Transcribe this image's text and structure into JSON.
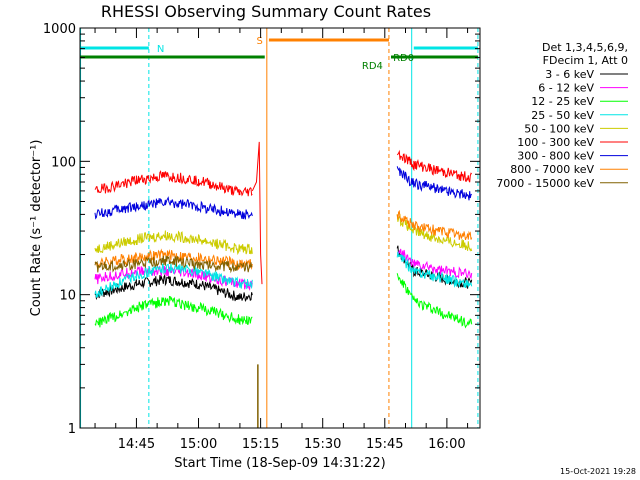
{
  "chart_data": {
    "type": "line",
    "title": "RHESSI Observing Summary Count Rates",
    "xlabel": "Start Time (18-Sep-09 14:31:22)",
    "ylabel": "Count Rate (s⁻¹ detector⁻¹)",
    "y_scale": "log",
    "ylim": [
      1,
      1000
    ],
    "xlim": [
      "14:31:22",
      "16:08:00"
    ],
    "x_ticks": [
      "14:45",
      "15:00",
      "15:15",
      "15:30",
      "15:45",
      "16:00"
    ],
    "y_ticks": [
      "1",
      "10",
      "100",
      "1000"
    ],
    "legend_position": "right",
    "legend_header": [
      "Det 1,3,4,5,6,9,",
      "FDecim 1, Att 0"
    ],
    "series": [
      {
        "name": "3 - 6 keV",
        "color": "#000000",
        "x": [
          "14:35",
          "14:45",
          "14:52",
          "15:00",
          "15:10",
          "15:13",
          "15:48",
          "15:52",
          "16:00",
          "16:06"
        ],
        "values": [
          10,
          12,
          13,
          12,
          9.5,
          10,
          22,
          15,
          13,
          12
        ]
      },
      {
        "name": "6 - 12 keV",
        "color": "#ff00ff",
        "x": [
          "14:35",
          "14:45",
          "14:52",
          "15:00",
          "15:10",
          "15:13",
          "15:48",
          "15:52",
          "16:00",
          "16:06"
        ],
        "values": [
          13,
          15,
          15,
          14,
          12,
          12,
          22,
          17,
          15,
          14
        ]
      },
      {
        "name": "12 - 25 keV",
        "color": "#00ff00",
        "x": [
          "14:35",
          "14:45",
          "14:52",
          "15:00",
          "15:10",
          "15:13",
          "15:48",
          "15:52",
          "16:00",
          "16:06"
        ],
        "values": [
          6,
          8,
          9,
          8,
          6.5,
          6.5,
          14,
          9,
          7,
          6
        ]
      },
      {
        "name": "25 - 50 keV",
        "color": "#00e5e5",
        "x": [
          "14:35",
          "14:45",
          "14:52",
          "15:00",
          "15:10",
          "15:13",
          "15:48",
          "15:52",
          "16:00",
          "16:06"
        ],
        "values": [
          10,
          14,
          16,
          15,
          12,
          12,
          20,
          15,
          13,
          12
        ]
      },
      {
        "name": "50 - 100 keV",
        "color": "#cccc00",
        "x": [
          "14:35",
          "14:45",
          "14:52",
          "15:00",
          "15:10",
          "15:13",
          "15:48",
          "15:52",
          "16:00",
          "16:06"
        ],
        "values": [
          22,
          26,
          28,
          26,
          22,
          22,
          38,
          30,
          25,
          23
        ]
      },
      {
        "name": "100 - 300 keV",
        "color": "#ff0000",
        "x": [
          "14:35",
          "14:45",
          "14:52",
          "15:00",
          "15:10",
          "15:13",
          "15:48",
          "15:52",
          "16:00",
          "16:06"
        ],
        "values": [
          60,
          72,
          78,
          72,
          58,
          60,
          115,
          95,
          82,
          75
        ]
      },
      {
        "name": "300 - 800 keV",
        "color": "#0000dd",
        "x": [
          "14:35",
          "14:45",
          "14:52",
          "15:00",
          "15:10",
          "15:13",
          "15:48",
          "15:52",
          "16:00",
          "16:06"
        ],
        "values": [
          40,
          46,
          49,
          46,
          40,
          40,
          85,
          68,
          60,
          55
        ]
      },
      {
        "name": "800 - 7000 keV",
        "color": "#ff8000",
        "x": [
          "14:35",
          "14:45",
          "14:52",
          "15:00",
          "15:10",
          "15:13",
          "15:48",
          "15:52",
          "16:00",
          "16:06"
        ],
        "values": [
          17,
          19,
          20,
          19,
          17,
          17,
          40,
          33,
          29,
          27
        ]
      },
      {
        "name": "7000 - 15000 keV",
        "color": "#806000",
        "x": [
          "14:35",
          "14:45",
          "14:52",
          "15:00",
          "15:10",
          "15:13"
        ],
        "values": [
          16,
          17,
          18,
          17,
          16,
          16
        ]
      }
    ],
    "flag_bars": [
      {
        "label": "N",
        "color": "#00e5e5"
      },
      {
        "label": "S",
        "color": "#ff8000"
      },
      {
        "label": "RD4",
        "color": "#008000"
      },
      {
        "label": "RD0",
        "color": "#008000"
      }
    ],
    "footer_date": "15-Oct-2021 19:28"
  }
}
